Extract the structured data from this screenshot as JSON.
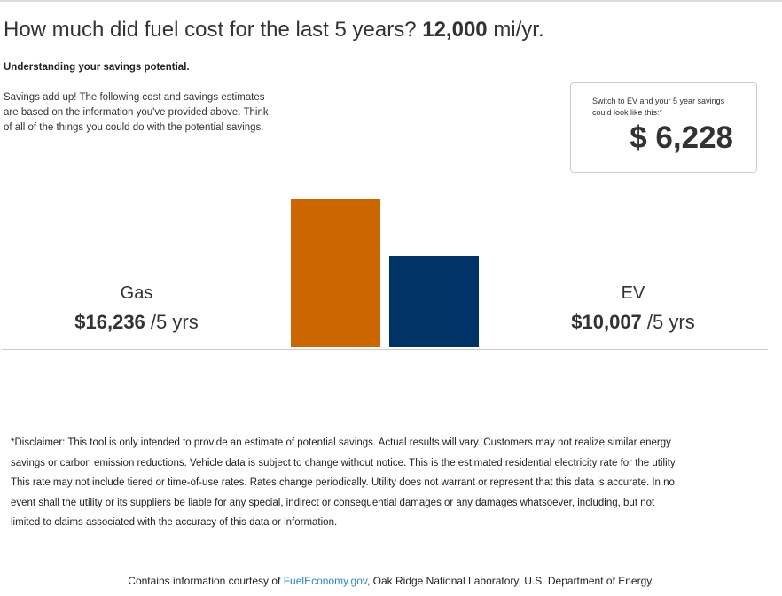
{
  "header": {
    "title_prefix": "How much did fuel cost for the last 5 years?",
    "miles": "12,000",
    "miles_unit": "mi/yr."
  },
  "subhead": "Understanding your savings potential.",
  "intro": "Savings add up! The following cost and savings estimates are based on the information you've provided above. Think of all of the things you could do with the potential savings.",
  "savings_box": {
    "label": "Switch to EV and your 5 year savings could look like this:*",
    "amount": "$ 6,228"
  },
  "chart_data": {
    "type": "bar",
    "categories": [
      "Gas",
      "EV"
    ],
    "values": [
      16236,
      10007
    ],
    "colors": [
      "#cc6600",
      "#003366"
    ],
    "labels": [
      {
        "name": "Gas",
        "amount": "$16,236",
        "unit": "/5 yrs"
      },
      {
        "name": "EV",
        "amount": "$10,007",
        "unit": "/5 yrs"
      }
    ]
  },
  "disclaimer_lines": [
    "*Disclaimer: This tool is only intended to provide an estimate of potential savings. Actual results will vary. Customers may not realize similar energy",
    "savings or carbon emission reductions. Vehicle data is subject to change without notice. This is the estimated residential electricity rate for the utility.",
    "This rate may not include tiered or time-of-use rates. Rates change periodically. Utility does not warrant or represent that this data is accurate. In no",
    "event shall the utility or its suppliers be liable for any special, indirect or consequential damages or any damages whatsoever, including, but not",
    "limited to claims associated with the accuracy of this data or information."
  ],
  "footer": {
    "prefix": "Contains information courtesy of",
    "link": "FuelEconomy.gov",
    "suffix": ", Oak Ridge National Laboratory, U.S. Department of Energy."
  }
}
